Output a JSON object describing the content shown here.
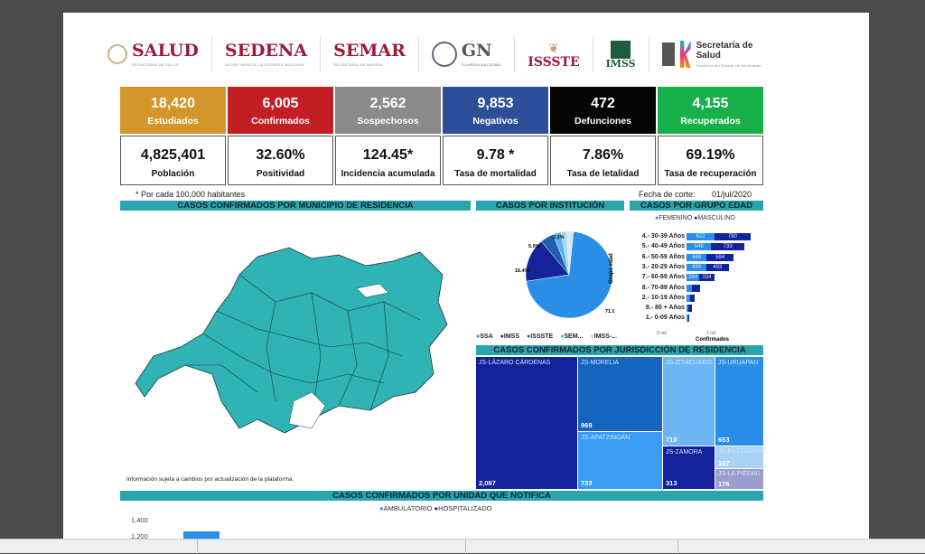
{
  "logos": [
    {
      "name": "SALUD",
      "sub": "SECRETARÍA DE SALUD"
    },
    {
      "name": "SEDENA",
      "sub": "SECRETARÍA DE LA DEFENSA NACIONAL"
    },
    {
      "name": "SEMAR",
      "sub": "SECRETARÍA DE MARINA"
    },
    {
      "name": "GN",
      "sub": "GUARDIA NACIONAL"
    },
    {
      "name": "ISSSTE",
      "sub": ""
    },
    {
      "name": "IMSS",
      "sub": ""
    },
    {
      "name": "Secretaría de Salud",
      "sub": "Gobierno del Estado de Michoacán"
    }
  ],
  "summary": [
    {
      "value": "18,420",
      "label": "Estudiados",
      "color": "#d4952a"
    },
    {
      "value": "6,005",
      "label": "Confirmados",
      "color": "#c21e24"
    },
    {
      "value": "2,562",
      "label": "Sospechosos",
      "color": "#8a8a8a"
    },
    {
      "value": "9,853",
      "label": "Negativos",
      "color": "#2d4f9a"
    },
    {
      "value": "472",
      "label": "Defunciones",
      "color": "#050505"
    },
    {
      "value": "4,155",
      "label": "Recuperados",
      "color": "#18b04a"
    }
  ],
  "rates": [
    {
      "value": "4,825,401",
      "label": "Población"
    },
    {
      "value": "32.60%",
      "label": "Positividad"
    },
    {
      "value": "124.45*",
      "label": "Incidencia acumulada"
    },
    {
      "value": "9.78   *",
      "label": "Tasa de mortalidad"
    },
    {
      "value": "7.86%",
      "label": "Tasa de letalidad"
    },
    {
      "value": "69.19%",
      "label": "Tasa de recuperación"
    }
  ],
  "footnote": "* Por cada 100,000 habitantes",
  "cutoff_label": "Fecha de corte:",
  "cutoff_date": "01/jul/2020",
  "map": {
    "title": "CASOS CONFIRMADOS POR MUNICIPIO DE RESIDENCIA",
    "note": "Información sujeta a cambios por actualización de la plataforma.",
    "color": "#2fb3b5"
  },
  "institution": {
    "title": "CASOS POR INSTITUCIÓN",
    "slices": [
      {
        "name": "SSA",
        "pct": 71.0,
        "color": "#2b8ee6"
      },
      {
        "name": "IMSS",
        "pct": 16.4,
        "color": "#14239a"
      },
      {
        "name": "ISSSTE",
        "pct": 5.0,
        "color": "#1f5fb0"
      },
      {
        "name": "SEM...",
        "pct": 3.0,
        "color": "#5fb0f0"
      },
      {
        "name": "IMSS-...",
        "pct": 2.1,
        "color": "#a9d2f5"
      },
      {
        "name": "",
        "pct": 2.5,
        "color": "#d5e8f8"
      }
    ],
    "labels": [
      "71.0%",
      "16.4%",
      "5.0%",
      "2.1%"
    ]
  },
  "age": {
    "title": "CASOS POR GRUPO EDAD",
    "legend": [
      "FEMENINO",
      "MASCULINO"
    ],
    "yaxis": "Grupo edad",
    "xaxis": "Confirmados",
    "ticks": [
      "0 mil",
      "1 mil"
    ],
    "rows": [
      {
        "label": "4.- 30-39 Años",
        "f": 622,
        "m": 790
      },
      {
        "label": "5.- 40-49 Años",
        "f": 548,
        "m": 733
      },
      {
        "label": "6.- 50-59 Años",
        "f": 448,
        "m": 594
      },
      {
        "label": "3.- 20-29 Años",
        "f": 439,
        "m": 493
      },
      {
        "label": "7.- 60-69 Años",
        "f": 284,
        "m": 334
      },
      {
        "label": "8.- 70-89 Años",
        "f": 120,
        "m": 180
      },
      {
        "label": "2.- 10-19 Años",
        "f": 80,
        "m": 95
      },
      {
        "label": "9.- 80 + Años",
        "f": 40,
        "m": 70
      },
      {
        "label": "1.- 0-09 Años",
        "f": 30,
        "m": 35
      }
    ]
  },
  "jurisdiction": {
    "title": "CASOS CONFIRMADOS POR JURISDICCIÓN DE RESIDENCIA",
    "items": [
      {
        "name": "JS-LÁZARO CÁRDENAS",
        "value": "2,087"
      },
      {
        "name": "JS-MORELIA",
        "value": "969"
      },
      {
        "name": "JS-APATZINGÁN",
        "value": "733"
      },
      {
        "name": "JS-ZITÁCUARO",
        "value": "710"
      },
      {
        "name": "JS-URUAPAN",
        "value": "653"
      },
      {
        "name": "JS-ZAMORA",
        "value": "313"
      },
      {
        "name": "JS-PÁTZCUARO",
        "value": "187"
      },
      {
        "name": "JS-LA PIEDAD",
        "value": "176"
      }
    ]
  },
  "unit": {
    "title": "CASOS CONFIRMADOS POR UNIDAD QUE NOTIFICA",
    "legend": [
      "AMBULATORIO",
      "HOSPITALIZADO"
    ],
    "yticks": [
      "1,400",
      "1,200"
    ]
  }
}
